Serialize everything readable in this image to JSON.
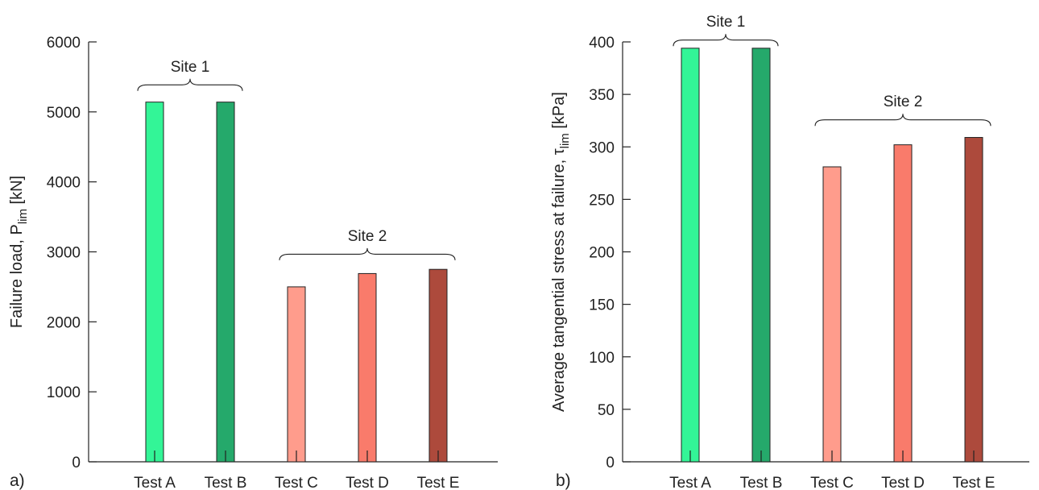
{
  "chart_data": [
    {
      "type": "bar",
      "panel_label": "a)",
      "ylabel_main": "Failure load, P",
      "ylabel_sub": "lim",
      "ylabel_unit": " [kN]",
      "ylim": [
        0,
        6000
      ],
      "yticks": [
        0,
        1000,
        2000,
        3000,
        4000,
        5000,
        6000
      ],
      "categories": [
        "Test A",
        "Test B",
        "Test C",
        "Test D",
        "Test E"
      ],
      "values": [
        5140,
        5140,
        2500,
        2690,
        2750
      ],
      "colors": [
        "#33f597",
        "#25a96b",
        "#ff9c8c",
        "#f97b6b",
        "#ad4a3c"
      ],
      "groups": [
        {
          "label": "Site 1",
          "from": 0,
          "to": 1,
          "at": 5300
        },
        {
          "label": "Site 2",
          "from": 2,
          "to": 4,
          "at": 2880
        }
      ]
    },
    {
      "type": "bar",
      "panel_label": "b)",
      "ylabel_main": "Average tangential stress at failure, τ",
      "ylabel_sub": "lim",
      "ylabel_unit": " [kPa]",
      "ylim": [
        0,
        400
      ],
      "yticks": [
        0,
        50,
        100,
        150,
        200,
        250,
        300,
        350,
        400
      ],
      "categories": [
        "Test A",
        "Test B",
        "Test C",
        "Test D",
        "Test E"
      ],
      "values": [
        394,
        394,
        281,
        302,
        309
      ],
      "colors": [
        "#33f597",
        "#25a96b",
        "#ff9c8c",
        "#f97b6b",
        "#ad4a3c"
      ],
      "groups": [
        {
          "label": "Site 1",
          "from": 0,
          "to": 1,
          "at": 396
        },
        {
          "label": "Site 2",
          "from": 2,
          "to": 4,
          "at": 320
        }
      ]
    }
  ]
}
